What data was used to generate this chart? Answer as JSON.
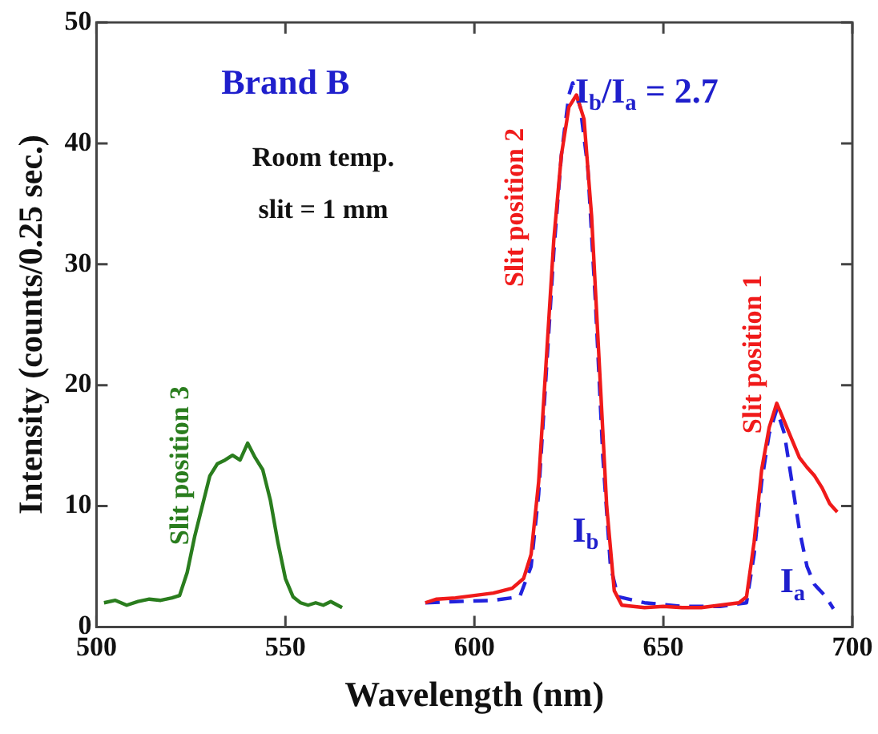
{
  "chart_data": {
    "type": "line",
    "xlabel": "Wavelength (nm)",
    "ylabel": "Intensity (counts/0.25 sec.)",
    "xlim": [
      500,
      700
    ],
    "xticks": [
      500,
      550,
      600,
      650,
      700
    ],
    "ylim": [
      0,
      50
    ],
    "yticks": [
      0,
      10,
      20,
      30,
      40,
      50
    ],
    "grid": false,
    "legend": false,
    "marker": "none",
    "annotations": [
      "Brand B",
      "Room temp.",
      "slit = 1 mm",
      "I$_{b}$/I$_{a}$ = 2.7",
      "Slit position 3",
      "Slit position 2",
      "Slit position 1",
      "I$_{b}$",
      "I$_{a}$"
    ],
    "series": [
      {
        "color": "#2a7d1e",
        "line_style": "solid",
        "x": [
          502,
          505,
          508,
          511,
          514,
          517,
          520,
          522,
          524,
          526,
          528,
          530,
          532,
          534,
          536,
          538,
          540,
          542,
          544,
          546,
          548,
          550,
          552,
          554,
          556,
          558,
          560,
          562,
          565
        ],
        "values": [
          2,
          2.2,
          1.8,
          2.1,
          2.3,
          2.2,
          2.4,
          2.6,
          4.5,
          7.5,
          10,
          12.5,
          13.5,
          13.8,
          14.2,
          13.8,
          15.2,
          14,
          13,
          10.5,
          7,
          4,
          2.5,
          2,
          1.8,
          2,
          1.8,
          2.1,
          1.6
        ]
      },
      {
        "color": "#f01a1a",
        "line_style": "solid",
        "x": [
          587,
          590,
          595,
          600,
          605,
          610,
          613,
          615,
          617,
          619,
          621,
          623,
          625,
          627,
          629,
          631,
          633,
          635,
          637,
          639,
          642,
          645,
          650,
          655,
          660,
          665,
          670,
          672,
          674,
          676,
          678,
          680,
          682,
          684,
          686,
          688,
          690,
          692,
          694,
          696
        ],
        "values": [
          2,
          2.3,
          2.4,
          2.6,
          2.8,
          3.2,
          4,
          6,
          12,
          22,
          32,
          39,
          43,
          44,
          42,
          34,
          22,
          10,
          3,
          1.8,
          1.7,
          1.6,
          1.7,
          1.6,
          1.6,
          1.8,
          2,
          2.5,
          7,
          13,
          16.5,
          18.5,
          17,
          15.5,
          14,
          13.2,
          12.5,
          11.5,
          10.2,
          9.5
        ]
      },
      {
        "color": "#2222dd",
        "line_style": "dashed",
        "x": [
          587,
          595,
          605,
          612,
          615,
          617,
          619,
          621,
          623,
          625,
          626,
          628,
          630,
          632,
          634,
          636,
          638,
          645,
          655,
          665,
          672,
          674,
          676,
          678,
          680,
          682,
          684,
          686,
          688,
          690,
          693,
          695
        ],
        "values": [
          2,
          2.1,
          2.2,
          2.5,
          5,
          11,
          21,
          31,
          39,
          44,
          45,
          43,
          38,
          27,
          14,
          5,
          2.5,
          2,
          1.7,
          1.7,
          2,
          6,
          12,
          16,
          18,
          16,
          12,
          8,
          5,
          3.5,
          2.5,
          1.5
        ]
      }
    ]
  }
}
